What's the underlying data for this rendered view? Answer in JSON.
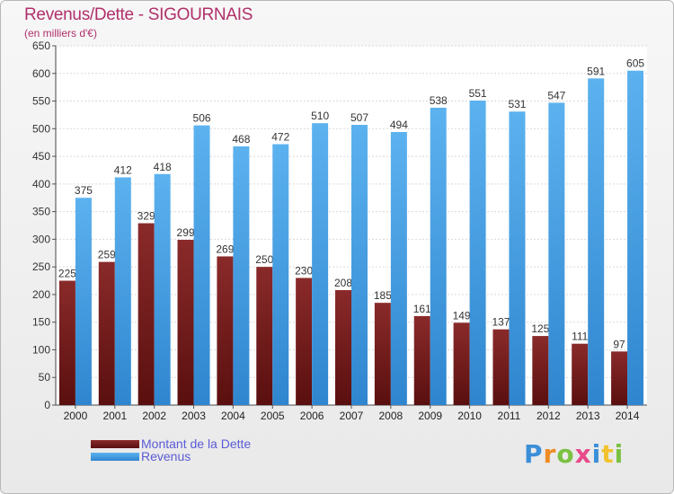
{
  "chart_data": {
    "type": "bar",
    "title": "Revenus/Dette - SIGOURNAIS",
    "subtitle": "(en milliers d'€)",
    "categories": [
      "2000",
      "2001",
      "2002",
      "2003",
      "2004",
      "2005",
      "2006",
      "2007",
      "2008",
      "2009",
      "2010",
      "2011",
      "2012",
      "2013",
      "2014"
    ],
    "series": [
      {
        "name": "Montant de la Dette",
        "color": "#7a1f1f",
        "values": [
          225,
          259,
          329,
          299,
          269,
          250,
          230,
          208,
          185,
          161,
          149,
          137,
          125,
          111,
          97
        ]
      },
      {
        "name": "Revenus",
        "color": "#4ea3e6",
        "values": [
          375,
          412,
          418,
          506,
          468,
          472,
          510,
          507,
          494,
          538,
          551,
          531,
          547,
          591,
          605
        ]
      }
    ],
    "ylim": [
      0,
      650
    ],
    "yticks": [
      0,
      50,
      100,
      150,
      200,
      250,
      300,
      350,
      400,
      450,
      500,
      550,
      600,
      650
    ],
    "grid": true,
    "legend": "bottom-left"
  },
  "logo": {
    "letters": [
      {
        "ch": "P",
        "color": "#3b8fd8"
      },
      {
        "ch": "r",
        "color": "#f08a24"
      },
      {
        "ch": "o",
        "color": "#7bc142"
      },
      {
        "ch": "x",
        "color": "#e84a8a"
      },
      {
        "ch": "i",
        "color": "#3b8fd8"
      },
      {
        "ch": "t",
        "color": "#f2c22e"
      },
      {
        "ch": "i",
        "color": "#7bc142"
      }
    ]
  }
}
